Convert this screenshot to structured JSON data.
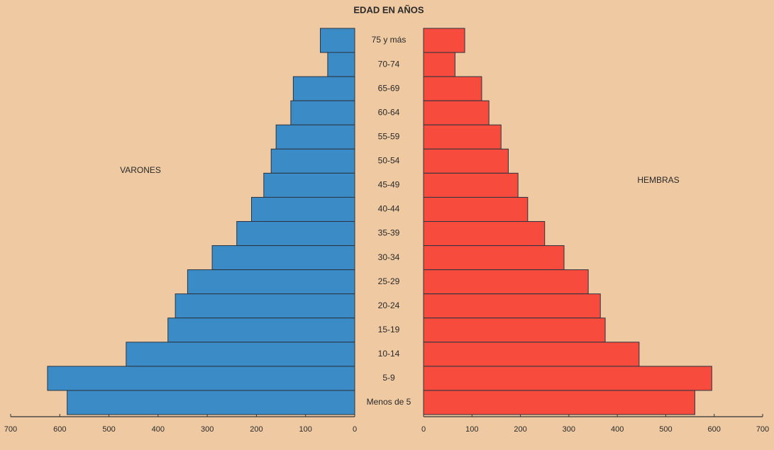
{
  "chart_data": {
    "type": "pyramid",
    "title": "EDAD EN AÑOS",
    "categories": [
      "75 y más",
      "70-74",
      "65-69",
      "60-64",
      "55-59",
      "50-54",
      "45-49",
      "40-44",
      "35-39",
      "30-34",
      "25-29",
      "20-24",
      "15-19",
      "10-14",
      "5-9",
      "Menos de 5"
    ],
    "series": [
      {
        "name": "VARONES",
        "color": "#3b8cc6",
        "values": [
          70,
          55,
          125,
          130,
          160,
          170,
          185,
          210,
          240,
          290,
          340,
          365,
          380,
          465,
          625,
          585
        ]
      },
      {
        "name": "HEMBRAS",
        "color": "#f64b3d",
        "values": [
          85,
          65,
          120,
          135,
          160,
          175,
          195,
          215,
          250,
          290,
          340,
          365,
          375,
          445,
          595,
          560
        ]
      }
    ],
    "xlim": [
      0,
      700
    ],
    "xticks": [
      0,
      100,
      200,
      300,
      400,
      500,
      600,
      700
    ]
  }
}
